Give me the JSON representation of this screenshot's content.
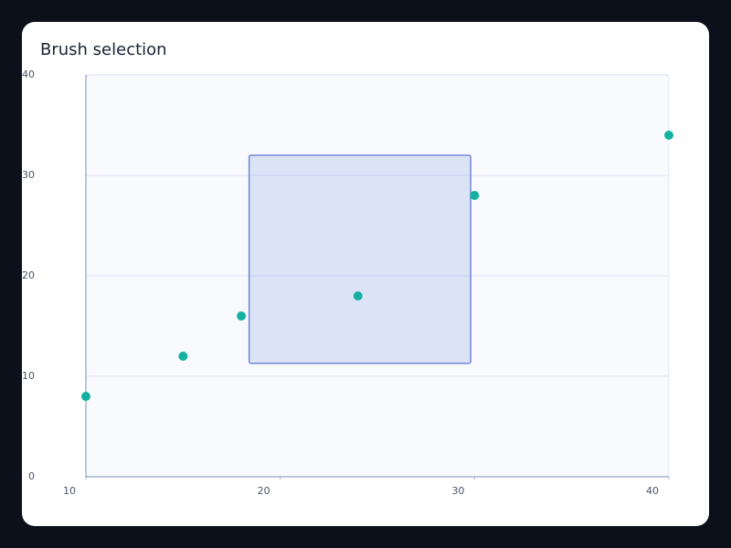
{
  "chart_data": {
    "type": "scatter",
    "title": "Brush selection",
    "x": [
      10,
      15,
      18,
      24,
      30,
      40
    ],
    "values": [
      8,
      12,
      16,
      18,
      28,
      34
    ],
    "color": "#14b1a1",
    "xlim": [
      10,
      40
    ],
    "xticks": [
      10,
      20,
      30,
      40
    ],
    "ylim": [
      0,
      40
    ],
    "yticks": [
      0,
      10,
      20,
      30,
      40
    ],
    "grid": true,
    "brush": {
      "x": [
        18.4,
        29.8
      ],
      "y": [
        11.3,
        32
      ]
    }
  }
}
